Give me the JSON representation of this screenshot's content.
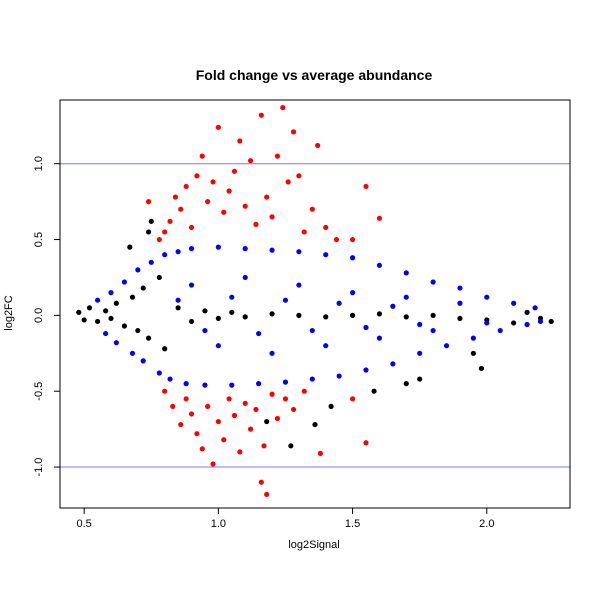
{
  "chart_data": {
    "type": "scatter",
    "title": "Fold change vs average abundance",
    "xlabel": "log2Signal",
    "ylabel": "log2FC",
    "xlim": [
      0.41,
      2.31
    ],
    "ylim": [
      -1.27,
      1.42
    ],
    "x_ticks": [
      0.5,
      1.0,
      1.5,
      2.0
    ],
    "x_tick_labels": [
      "0.5",
      "1.0",
      "1.5",
      "2.0"
    ],
    "y_ticks": [
      -1.0,
      -0.5,
      0.0,
      0.5,
      1.0
    ],
    "y_tick_labels": [
      "-1.0",
      "-0.5",
      "0.0",
      "0.5",
      "1.0"
    ],
    "grid": false,
    "reference_lines": [
      1.0,
      -1.0
    ],
    "reference_line_color": "#7777ff",
    "series": [
      {
        "color": "#000000",
        "points": [
          [
            0.48,
            0.02
          ],
          [
            0.5,
            -0.03
          ],
          [
            0.52,
            0.05
          ],
          [
            0.55,
            -0.04
          ],
          [
            0.58,
            0.03
          ],
          [
            0.6,
            -0.02
          ],
          [
            0.62,
            0.08
          ],
          [
            0.65,
            -0.07
          ],
          [
            0.68,
            0.12
          ],
          [
            0.7,
            -0.1
          ],
          [
            0.72,
            0.18
          ],
          [
            0.74,
            -0.15
          ],
          [
            0.75,
            0.62
          ],
          [
            0.78,
            0.25
          ],
          [
            0.8,
            -0.22
          ],
          [
            0.85,
            0.05
          ],
          [
            0.9,
            -0.04
          ],
          [
            0.95,
            0.03
          ],
          [
            1.0,
            -0.02
          ],
          [
            1.05,
            0.02
          ],
          [
            1.1,
            -0.01
          ],
          [
            1.2,
            0.01
          ],
          [
            1.3,
            0.0
          ],
          [
            1.4,
            -0.01
          ],
          [
            1.5,
            0.0
          ],
          [
            1.6,
            0.01
          ],
          [
            1.7,
            -0.01
          ],
          [
            1.8,
            0.0
          ],
          [
            1.9,
            -0.02
          ],
          [
            2.0,
            -0.03
          ],
          [
            2.1,
            -0.05
          ],
          [
            2.15,
            0.02
          ],
          [
            2.2,
            -0.02
          ],
          [
            2.24,
            -0.04
          ],
          [
            0.67,
            0.45
          ],
          [
            0.74,
            0.55
          ],
          [
            1.36,
            -0.72
          ],
          [
            1.27,
            -0.86
          ],
          [
            1.18,
            -0.7
          ],
          [
            1.42,
            -0.6
          ],
          [
            1.7,
            -0.45
          ],
          [
            1.58,
            -0.5
          ],
          [
            1.95,
            -0.25
          ],
          [
            1.98,
            -0.35
          ],
          [
            1.75,
            -0.42
          ]
        ]
      },
      {
        "color": "#0000ff",
        "points": [
          [
            0.55,
            0.1
          ],
          [
            0.58,
            -0.12
          ],
          [
            0.6,
            0.15
          ],
          [
            0.62,
            -0.18
          ],
          [
            0.65,
            0.22
          ],
          [
            0.68,
            -0.25
          ],
          [
            0.7,
            0.3
          ],
          [
            0.72,
            -0.3
          ],
          [
            0.75,
            0.35
          ],
          [
            0.78,
            -0.38
          ],
          [
            0.8,
            0.4
          ],
          [
            0.82,
            -0.42
          ],
          [
            0.85,
            0.42
          ],
          [
            0.88,
            -0.45
          ],
          [
            0.9,
            0.44
          ],
          [
            0.95,
            -0.46
          ],
          [
            1.0,
            0.45
          ],
          [
            1.05,
            -0.46
          ],
          [
            1.1,
            0.44
          ],
          [
            1.15,
            -0.45
          ],
          [
            1.2,
            0.43
          ],
          [
            1.25,
            -0.44
          ],
          [
            1.3,
            0.42
          ],
          [
            1.35,
            -0.42
          ],
          [
            1.4,
            0.4
          ],
          [
            1.45,
            -0.4
          ],
          [
            1.5,
            0.38
          ],
          [
            1.55,
            -0.36
          ],
          [
            1.6,
            0.33
          ],
          [
            1.65,
            -0.32
          ],
          [
            1.7,
            0.28
          ],
          [
            1.75,
            -0.25
          ],
          [
            1.8,
            0.22
          ],
          [
            1.85,
            -0.2
          ],
          [
            1.9,
            0.18
          ],
          [
            1.95,
            -0.15
          ],
          [
            2.0,
            0.12
          ],
          [
            2.05,
            -0.1
          ],
          [
            2.1,
            0.08
          ],
          [
            2.15,
            -0.06
          ],
          [
            2.18,
            0.05
          ],
          [
            2.2,
            -0.04
          ],
          [
            0.9,
            0.2
          ],
          [
            1.0,
            -0.2
          ],
          [
            1.1,
            0.25
          ],
          [
            1.2,
            -0.25
          ],
          [
            1.3,
            0.2
          ],
          [
            1.4,
            -0.2
          ],
          [
            1.5,
            0.15
          ],
          [
            1.6,
            -0.15
          ],
          [
            1.7,
            0.12
          ],
          [
            1.8,
            -0.1
          ],
          [
            1.9,
            0.08
          ],
          [
            2.0,
            -0.05
          ],
          [
            0.85,
            0.1
          ],
          [
            0.95,
            -0.1
          ],
          [
            1.05,
            0.12
          ],
          [
            1.15,
            -0.12
          ],
          [
            1.25,
            0.1
          ],
          [
            1.35,
            -0.1
          ],
          [
            1.45,
            0.08
          ],
          [
            1.55,
            -0.08
          ],
          [
            1.65,
            0.06
          ],
          [
            1.75,
            -0.06
          ]
        ]
      },
      {
        "color": "#ff0000",
        "points": [
          [
            0.78,
            0.5
          ],
          [
            0.8,
            0.55
          ],
          [
            0.82,
            0.62
          ],
          [
            0.84,
            0.78
          ],
          [
            0.86,
            0.7
          ],
          [
            0.88,
            0.85
          ],
          [
            0.9,
            0.58
          ],
          [
            0.92,
            0.92
          ],
          [
            0.94,
            1.05
          ],
          [
            0.96,
            0.75
          ],
          [
            0.98,
            0.88
          ],
          [
            1.0,
            1.24
          ],
          [
            1.02,
            0.68
          ],
          [
            1.04,
            0.82
          ],
          [
            1.06,
            0.95
          ],
          [
            1.08,
            1.15
          ],
          [
            1.1,
            0.72
          ],
          [
            1.12,
            1.02
          ],
          [
            1.14,
            0.6
          ],
          [
            1.16,
            1.32
          ],
          [
            1.18,
            0.78
          ],
          [
            1.2,
            0.65
          ],
          [
            1.22,
            1.05
          ],
          [
            1.24,
            1.37
          ],
          [
            1.26,
            0.88
          ],
          [
            1.28,
            1.21
          ],
          [
            1.3,
            0.92
          ],
          [
            1.32,
            0.55
          ],
          [
            1.35,
            0.7
          ],
          [
            1.37,
            1.12
          ],
          [
            1.4,
            0.58
          ],
          [
            1.44,
            0.5
          ],
          [
            1.5,
            0.5
          ],
          [
            1.55,
            0.85
          ],
          [
            1.6,
            0.64
          ],
          [
            0.8,
            -0.5
          ],
          [
            0.83,
            -0.6
          ],
          [
            0.86,
            -0.72
          ],
          [
            0.88,
            -0.55
          ],
          [
            0.9,
            -0.65
          ],
          [
            0.92,
            -0.78
          ],
          [
            0.94,
            -0.88
          ],
          [
            0.96,
            -0.6
          ],
          [
            0.98,
            -0.98
          ],
          [
            1.0,
            -0.7
          ],
          [
            1.02,
            -0.82
          ],
          [
            1.04,
            -0.55
          ],
          [
            1.06,
            -0.66
          ],
          [
            1.08,
            -0.9
          ],
          [
            1.1,
            -0.58
          ],
          [
            1.12,
            -0.75
          ],
          [
            1.14,
            -0.62
          ],
          [
            1.16,
            -1.1
          ],
          [
            1.17,
            -0.86
          ],
          [
            1.18,
            -1.18
          ],
          [
            1.2,
            -0.52
          ],
          [
            1.22,
            -0.68
          ],
          [
            1.25,
            -0.55
          ],
          [
            1.28,
            -0.62
          ],
          [
            1.32,
            -0.5
          ],
          [
            1.38,
            -0.91
          ],
          [
            1.5,
            -0.55
          ],
          [
            1.55,
            -0.84
          ],
          [
            0.74,
            0.75
          ]
        ]
      }
    ]
  }
}
